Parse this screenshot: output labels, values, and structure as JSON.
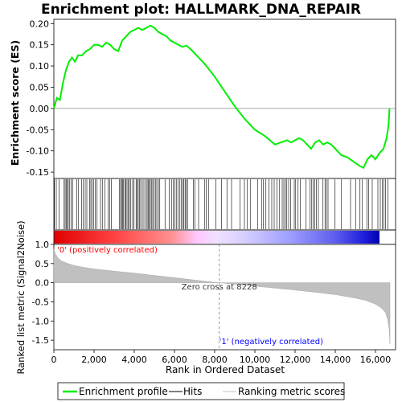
{
  "chart_data": {
    "type": "line",
    "title": "Enrichment plot: HALLMARK_DNA_REPAIR",
    "top_panel": {
      "ylabel": "Enrichment score (ES)",
      "ylim": [
        -0.165,
        0.21
      ],
      "yticks": [
        0.2,
        0.15,
        0.1,
        0.05,
        0.0,
        -0.05,
        -0.1,
        -0.15
      ],
      "ytick_labels": [
        "0.20",
        "0.15",
        "0.10",
        "0.05",
        "0.00",
        "-0.05",
        "-0.10",
        "-0.15"
      ],
      "series": [
        {
          "name": "Enrichment profile",
          "color": "#00ee00",
          "x": [
            0,
            150,
            300,
            450,
            600,
            750,
            900,
            1050,
            1200,
            1400,
            1600,
            1800,
            2000,
            2200,
            2400,
            2600,
            2800,
            3000,
            3200,
            3400,
            3600,
            3800,
            4000,
            4200,
            4400,
            4600,
            4800,
            5000,
            5200,
            5400,
            5600,
            5800,
            6000,
            6200,
            6400,
            6600,
            6800,
            7000,
            7500,
            8000,
            8500,
            9000,
            9500,
            10000,
            10500,
            11000,
            11300,
            11600,
            11800,
            12000,
            12200,
            12400,
            12600,
            12800,
            13000,
            13200,
            13400,
            13600,
            13800,
            14000,
            14300,
            14600,
            14900,
            15200,
            15400,
            15600,
            15800,
            16000,
            16200,
            16400,
            16550,
            16650,
            16700
          ],
          "y": [
            0.0,
            0.025,
            0.02,
            0.06,
            0.09,
            0.11,
            0.12,
            0.11,
            0.125,
            0.125,
            0.135,
            0.14,
            0.15,
            0.15,
            0.145,
            0.155,
            0.15,
            0.14,
            0.135,
            0.16,
            0.17,
            0.18,
            0.185,
            0.19,
            0.185,
            0.19,
            0.195,
            0.19,
            0.18,
            0.175,
            0.17,
            0.16,
            0.155,
            0.15,
            0.145,
            0.148,
            0.14,
            0.13,
            0.105,
            0.075,
            0.04,
            0.005,
            -0.025,
            -0.05,
            -0.065,
            -0.085,
            -0.08,
            -0.075,
            -0.08,
            -0.075,
            -0.07,
            -0.075,
            -0.085,
            -0.095,
            -0.08,
            -0.075,
            -0.085,
            -0.08,
            -0.085,
            -0.095,
            -0.11,
            -0.115,
            -0.125,
            -0.135,
            -0.14,
            -0.12,
            -0.11,
            -0.12,
            -0.105,
            -0.095,
            -0.07,
            -0.04,
            0.0
          ]
        }
      ]
    },
    "hits_panel": {
      "hit_positions": [
        30,
        120,
        260,
        510,
        560,
        610,
        660,
        720,
        790,
        860,
        930,
        1140,
        1230,
        1380,
        1460,
        1560,
        1640,
        1780,
        1840,
        1900,
        1980,
        2060,
        2150,
        2320,
        2410,
        2530,
        2700,
        2780,
        2860,
        3270,
        3320,
        3370,
        3420,
        3470,
        3530,
        3580,
        3640,
        3700,
        3760,
        3830,
        3920,
        3990,
        4090,
        4140,
        4200,
        4260,
        4320,
        4400,
        4480,
        4570,
        4640,
        4690,
        4740,
        4800,
        4870,
        4920,
        4990,
        5050,
        5120,
        5200,
        5270,
        5530,
        5740,
        5850,
        5940,
        6020,
        6090,
        6170,
        6270,
        6340,
        6410,
        6470,
        6530,
        6590,
        6650,
        6940,
        7010,
        7200,
        7490,
        7580,
        7690,
        8060,
        8340,
        8610,
        8840,
        9270,
        9480,
        9630,
        9790,
        10130,
        10330,
        10420,
        10550,
        10700,
        10840,
        10960,
        11100,
        11230,
        11360,
        11440,
        11520,
        11590,
        11680,
        11780,
        11960,
        12030,
        12150,
        12260,
        12550,
        12750,
        12830,
        12900,
        12980,
        13060,
        13160,
        13390,
        13490,
        13560,
        13640,
        13990,
        14310,
        14760,
        15010,
        15230,
        15350,
        15570,
        15660,
        15840,
        16120,
        16240,
        16340,
        16420,
        16500,
        16610
      ]
    },
    "bottom_panel": {
      "ylabel": "Ranked list metric (Signal2Noise)",
      "ylim": [
        -1.75,
        1.0
      ],
      "yticks": [
        1.0,
        0.5,
        0.0,
        -0.5,
        -1.0,
        -1.5
      ],
      "ytick_labels": [
        "1.0",
        "0.5",
        "0.0",
        "-0.5",
        "-1.0",
        "-1.5"
      ],
      "xlabel": "Rank in Ordered Dataset",
      "xlim": [
        0,
        17000
      ],
      "xticks": [
        0,
        2000,
        4000,
        6000,
        8000,
        10000,
        12000,
        14000,
        16000
      ],
      "xtick_labels": [
        "0",
        "2,000",
        "4,000",
        "6,000",
        "8,000",
        "10,000",
        "12,000",
        "14,000",
        "16,000"
      ],
      "metric_curve": {
        "x": [
          0,
          80,
          200,
          400,
          700,
          1000,
          1500,
          2000,
          3000,
          4000,
          5000,
          6000,
          7000,
          8000,
          8228,
          9000,
          10000,
          11000,
          12000,
          13000,
          14000,
          15000,
          15500,
          16000,
          16300,
          16500,
          16600,
          16680,
          16720
        ],
        "y": [
          0.88,
          0.75,
          0.65,
          0.56,
          0.5,
          0.45,
          0.4,
          0.36,
          0.3,
          0.25,
          0.19,
          0.13,
          0.07,
          0.01,
          0.0,
          -0.04,
          -0.09,
          -0.14,
          -0.19,
          -0.25,
          -0.31,
          -0.4,
          -0.46,
          -0.56,
          -0.66,
          -0.78,
          -0.95,
          -1.2,
          -1.6
        ]
      },
      "zero_cross_label": "Zero cross at 8228",
      "zero_cross_x": 8228,
      "positive_label": "'0' (positively correlated)",
      "negative_label": "'1' (negatively correlated)",
      "positive_color": "#ff0000",
      "negative_color": "#0000ff"
    },
    "n_genes": 16720,
    "legend": {
      "items": [
        {
          "label": "Enrichment profile",
          "color": "#00ee00"
        },
        {
          "label": "Hits",
          "color": "#000000"
        },
        {
          "label": "Ranking metric scores",
          "color": "#c0c0c0"
        }
      ],
      "placement": "bottom"
    }
  }
}
